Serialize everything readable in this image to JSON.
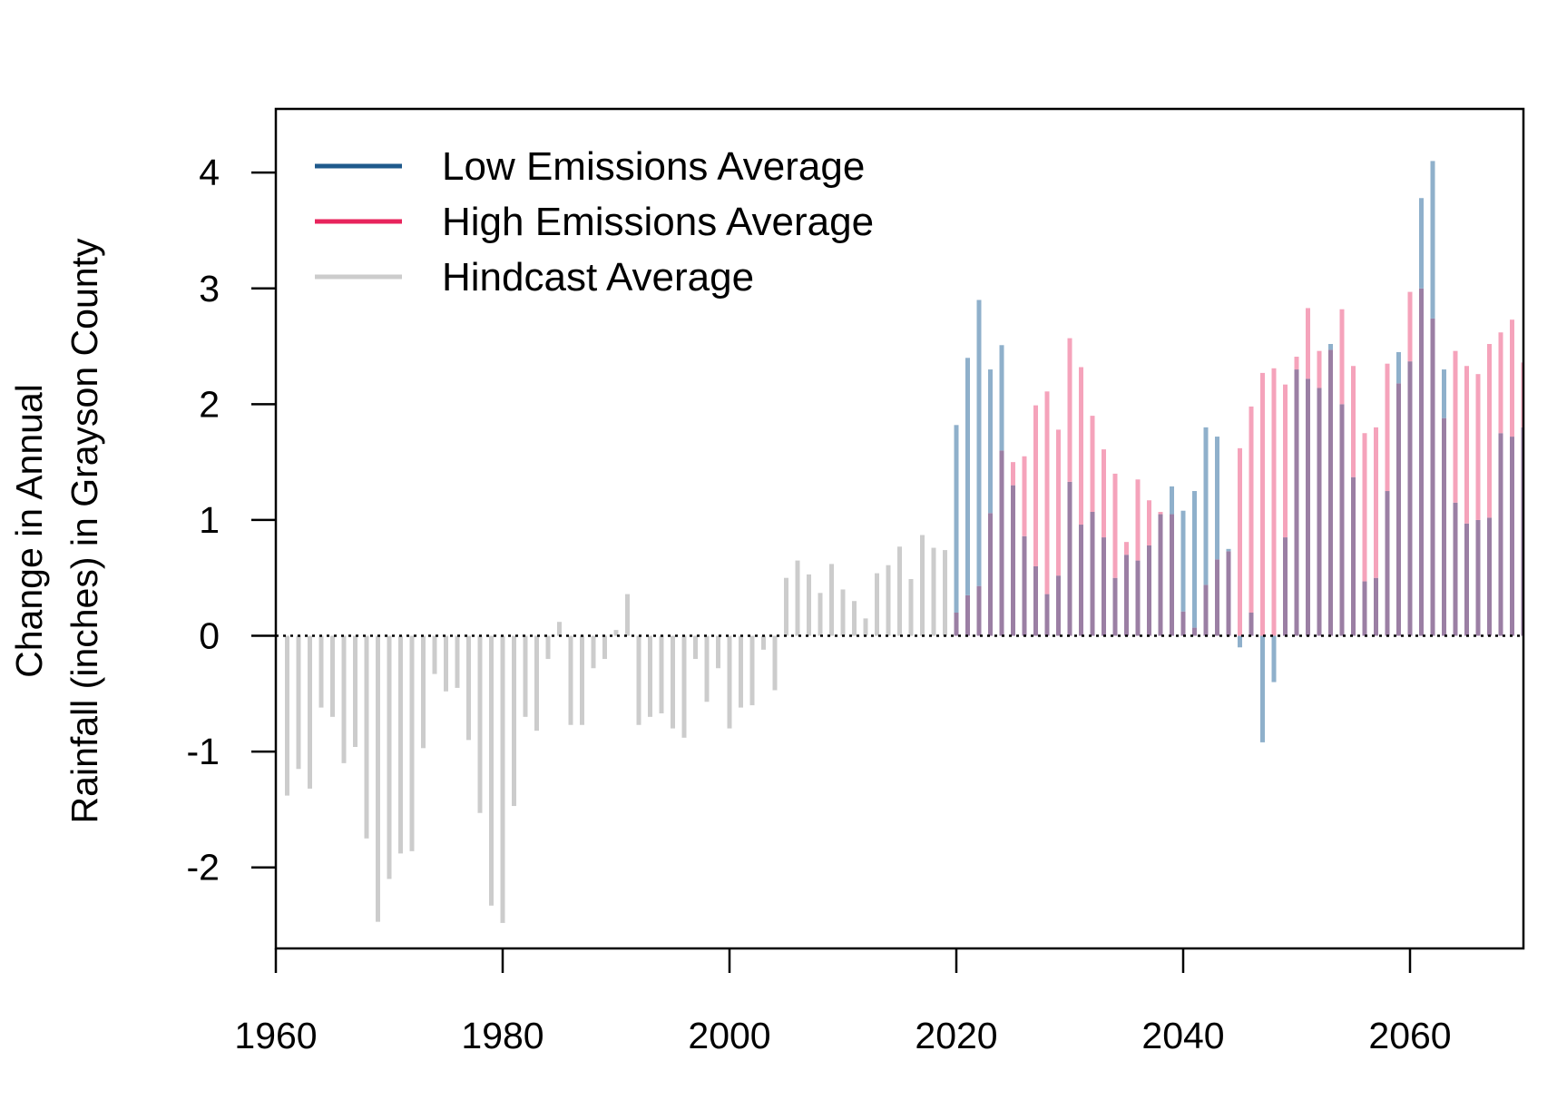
{
  "chart_data": {
    "type": "bar",
    "title": "",
    "xlabel": "",
    "ylabel_lines": [
      "Change in Annual",
      "Rainfall (inches) in Grayson County"
    ],
    "xlim": [
      1960,
      2070
    ],
    "ylim": [
      -2.7,
      4.55
    ],
    "xticks": [
      "1960",
      "1980",
      "2000",
      "2020",
      "2040",
      "2060"
    ],
    "yticks": [
      "-2",
      "-1",
      "0",
      "1",
      "2",
      "3",
      "4"
    ],
    "reference_line": 0,
    "legend_position": "top-left",
    "colors": {
      "low": "#1f5a8c",
      "high": "#e8245c",
      "hindcast": "#cccccc",
      "low_bar": "#8fb0cb",
      "high_bar": "#f5a3bb",
      "overlap_bar": "#9b7fa4"
    },
    "series": [
      {
        "name": "Hindcast Average",
        "key": "hindcast",
        "x": [
          1961,
          1962,
          1963,
          1964,
          1965,
          1966,
          1967,
          1968,
          1969,
          1970,
          1971,
          1972,
          1973,
          1974,
          1975,
          1976,
          1977,
          1978,
          1979,
          1980,
          1981,
          1982,
          1983,
          1984,
          1985,
          1986,
          1987,
          1988,
          1989,
          1990,
          1991,
          1992,
          1993,
          1994,
          1995,
          1996,
          1997,
          1998,
          1999,
          2000,
          2001,
          2002,
          2003,
          2004,
          2005,
          2006,
          2007,
          2008,
          2009,
          2010,
          2011,
          2012,
          2013,
          2014,
          2015,
          2016,
          2017,
          2018,
          2019
        ],
        "values": [
          -1.38,
          -1.15,
          -1.32,
          -0.62,
          -0.7,
          -1.1,
          -0.96,
          -1.75,
          -2.47,
          -2.1,
          -1.88,
          -1.86,
          -0.97,
          -0.33,
          -0.48,
          -0.45,
          -0.9,
          -1.53,
          -2.33,
          -2.48,
          -1.47,
          -0.7,
          -0.82,
          -0.2,
          0.12,
          -0.77,
          -0.77,
          -0.28,
          -0.2,
          0.05,
          0.36,
          -0.77,
          -0.7,
          -0.67,
          -0.8,
          -0.88,
          -0.2,
          -0.57,
          -0.28,
          -0.8,
          -0.62,
          -0.6,
          -0.12,
          -0.47,
          0.5,
          0.65,
          0.53,
          0.37,
          0.62,
          0.4,
          0.3,
          0.15,
          0.54,
          0.61,
          0.77,
          0.49,
          0.87,
          0.76,
          0.74
        ]
      },
      {
        "name": "Low Emissions Average",
        "key": "low",
        "x": [
          2020,
          2021,
          2022,
          2023,
          2024,
          2025,
          2026,
          2027,
          2028,
          2029,
          2030,
          2031,
          2032,
          2033,
          2034,
          2035,
          2036,
          2037,
          2038,
          2039,
          2040,
          2041,
          2042,
          2043,
          2044,
          2045,
          2046,
          2047,
          2048,
          2049,
          2050,
          2051,
          2052,
          2053,
          2054,
          2055,
          2056,
          2057,
          2058,
          2059,
          2060,
          2061,
          2062,
          2063,
          2064,
          2065,
          2066,
          2067,
          2068,
          2069,
          2070
        ],
        "values": [
          1.82,
          2.4,
          2.9,
          2.3,
          2.51,
          1.3,
          0.86,
          0.6,
          0.36,
          0.52,
          1.33,
          0.96,
          1.07,
          0.85,
          0.5,
          0.7,
          0.65,
          0.78,
          1.05,
          1.29,
          1.08,
          1.25,
          1.8,
          1.72,
          0.75,
          -0.1,
          0.2,
          -0.92,
          -0.4,
          0.85,
          2.3,
          2.22,
          2.14,
          2.52,
          2.0,
          1.37,
          0.47,
          0.5,
          1.25,
          2.45,
          2.37,
          3.78,
          4.1,
          2.3,
          1.15,
          0.97,
          1.0,
          1.02,
          1.75,
          1.72,
          1.8
        ]
      },
      {
        "name": "High Emissions Average",
        "key": "high",
        "x": [
          2020,
          2021,
          2022,
          2023,
          2024,
          2025,
          2026,
          2027,
          2028,
          2029,
          2030,
          2031,
          2032,
          2033,
          2034,
          2035,
          2036,
          2037,
          2038,
          2039,
          2040,
          2041,
          2042,
          2043,
          2044,
          2045,
          2046,
          2047,
          2048,
          2049,
          2050,
          2051,
          2052,
          2053,
          2054,
          2055,
          2056,
          2057,
          2058,
          2059,
          2060,
          2061,
          2062,
          2063,
          2064,
          2065,
          2066,
          2067,
          2068,
          2069,
          2070
        ],
        "values": [
          0.2,
          0.35,
          0.43,
          1.06,
          1.6,
          1.5,
          1.55,
          1.99,
          2.11,
          1.78,
          2.57,
          2.32,
          1.9,
          1.61,
          1.4,
          0.81,
          1.35,
          1.17,
          1.07,
          1.05,
          0.21,
          0.07,
          0.44,
          0.66,
          0.73,
          1.62,
          1.98,
          2.27,
          2.31,
          2.17,
          2.41,
          2.83,
          2.46,
          2.47,
          2.82,
          2.33,
          1.75,
          1.8,
          2.35,
          2.18,
          2.97,
          3.0,
          2.74,
          1.88,
          2.46,
          2.33,
          2.26,
          2.52,
          2.62,
          2.73,
          2.36
        ]
      }
    ]
  }
}
